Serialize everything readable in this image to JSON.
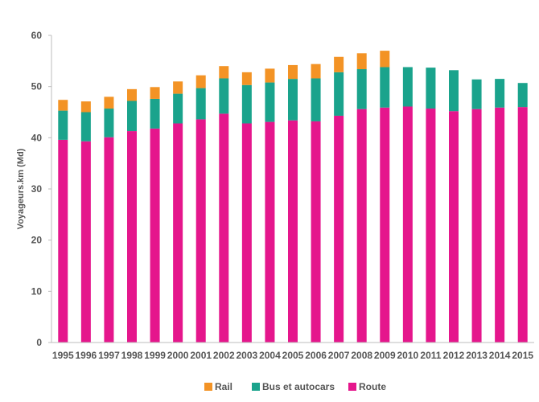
{
  "chart_data": {
    "type": "bar",
    "stacked": true,
    "categories": [
      "1995",
      "1996",
      "1997",
      "1998",
      "1999",
      "2000",
      "2001",
      "2002",
      "2003",
      "2004",
      "2005",
      "2006",
      "2007",
      "2008",
      "2009",
      "2010",
      "2011",
      "2012",
      "2013",
      "2014",
      "2015"
    ],
    "series": [
      {
        "name": "Route",
        "color": "#e5168c",
        "values": [
          39.6,
          39.3,
          40.1,
          41.3,
          41.8,
          42.8,
          43.6,
          44.7,
          42.8,
          43.1,
          43.4,
          43.2,
          44.3,
          45.6,
          45.9,
          46.1,
          45.7,
          45.2,
          45.6,
          45.9,
          46.0
        ]
      },
      {
        "name": "Bus et autocars",
        "color": "#1aa38c",
        "values": [
          5.7,
          5.7,
          5.6,
          5.9,
          5.8,
          5.8,
          6.1,
          6.9,
          7.5,
          7.7,
          8.1,
          8.4,
          8.5,
          7.8,
          7.9,
          7.7,
          8.0,
          8.0,
          5.8,
          5.6,
          4.7
        ]
      },
      {
        "name": "Rail",
        "color": "#f39325",
        "values": [
          2.1,
          2.1,
          2.3,
          2.3,
          2.3,
          2.4,
          2.5,
          2.4,
          2.5,
          2.7,
          2.7,
          2.8,
          3.0,
          3.1,
          3.2,
          0,
          0,
          0,
          0,
          0,
          0
        ]
      }
    ],
    "title": "",
    "xlabel": "",
    "ylabel": "Voyageurs.km (Md)",
    "ylim": [
      0,
      60
    ],
    "yticks": [
      0,
      10,
      20,
      30,
      40,
      50,
      60
    ],
    "grid": false,
    "legend": {
      "position": "bottom",
      "items": [
        {
          "name": "Rail",
          "color": "#f39325"
        },
        {
          "name": "Bus et autocars",
          "color": "#1aa38c"
        },
        {
          "name": "Route",
          "color": "#e5168c"
        }
      ]
    }
  }
}
